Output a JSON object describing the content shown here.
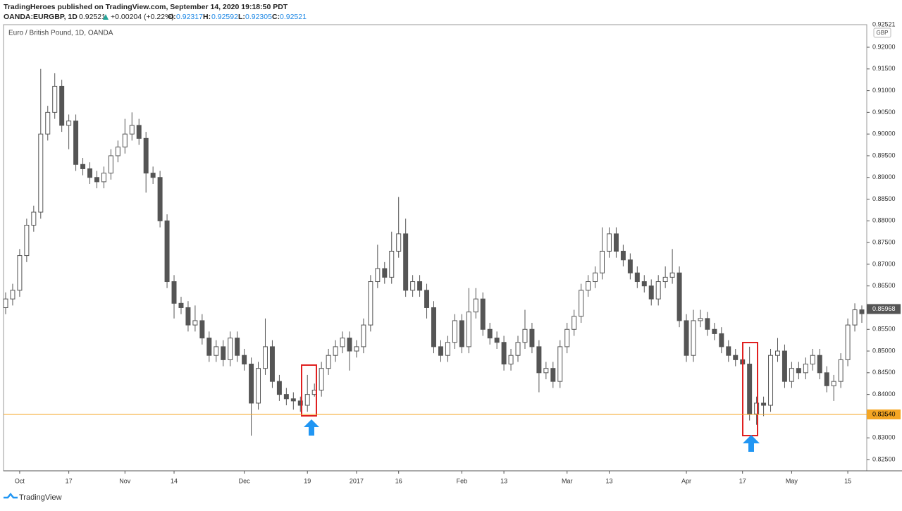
{
  "header": {
    "publisher": "TradingHeroes published on TradingView.com, September 14, 2020 19:18:50 PDT",
    "symbol": "OANDA:EURGBP, 1D",
    "price": "0.92521",
    "change": "+0.00204 (+0.22%)",
    "o_label": "O:",
    "o": "0.92317",
    "h_label": "H:",
    "h": "0.92592",
    "l_label": "L:",
    "l": "0.92305",
    "c_label": "C:",
    "c": "0.92521"
  },
  "footer": {
    "brand": "TradingView"
  },
  "chart_data": {
    "type": "candlestick",
    "title": "Euro / British Pound, 1D, OANDA",
    "currency": "GBP",
    "up_color": "#ffffff",
    "down_color": "#555555",
    "edge_color": "#555555",
    "grid": false,
    "open": [
      0.86,
      0.862,
      0.864,
      0.872,
      0.879,
      0.882,
      0.9,
      0.905,
      0.911,
      0.902,
      0.903,
      0.893,
      0.892,
      0.89,
      0.889,
      0.891,
      0.895,
      0.897,
      0.9,
      0.902,
      0.899,
      0.891,
      0.89,
      0.88,
      0.866,
      0.861,
      0.86,
      0.856,
      0.857,
      0.853,
      0.849,
      0.851,
      0.848,
      0.853,
      0.849,
      0.847,
      0.838,
      0.846,
      0.851,
      0.843,
      0.84,
      0.839,
      0.8385,
      0.8375,
      0.84,
      0.841,
      0.846,
      0.849,
      0.851,
      0.853,
      0.85,
      0.851,
      0.856,
      0.866,
      0.869,
      0.867,
      0.873,
      0.877,
      0.864,
      0.866,
      0.864,
      0.86,
      0.851,
      0.849,
      0.852,
      0.857,
      0.851,
      0.859,
      0.862,
      0.855,
      0.853,
      0.852,
      0.847,
      0.849,
      0.852,
      0.855,
      0.851,
      0.845,
      0.846,
      0.843,
      0.851,
      0.855,
      0.858,
      0.864,
      0.866,
      0.868,
      0.873,
      0.877,
      0.873,
      0.871,
      0.868,
      0.866,
      0.865,
      0.862,
      0.866,
      0.867,
      0.868,
      0.857,
      0.849,
      0.857,
      0.8575,
      0.855,
      0.854,
      0.851,
      0.849,
      0.848,
      0.847,
      0.8355,
      0.838,
      0.8375,
      0.849,
      0.85,
      0.843,
      0.846,
      0.845,
      0.847,
      0.849,
      0.845,
      0.842,
      0.843,
      0.848,
      0.856,
      0.8595
    ],
    "high": [
      0.8635,
      0.8655,
      0.8735,
      0.8805,
      0.8835,
      0.915,
      0.9065,
      0.914,
      0.9125,
      0.9045,
      0.9045,
      0.8945,
      0.8935,
      0.8915,
      0.8925,
      0.8965,
      0.8985,
      0.9035,
      0.905,
      0.9035,
      0.9005,
      0.8925,
      0.8915,
      0.8815,
      0.8675,
      0.8625,
      0.8615,
      0.8605,
      0.8585,
      0.8545,
      0.8525,
      0.8525,
      0.8545,
      0.8545,
      0.8505,
      0.8485,
      0.8475,
      0.8575,
      0.8525,
      0.8445,
      0.8415,
      0.8405,
      0.8395,
      0.8445,
      0.8425,
      0.8475,
      0.8505,
      0.8525,
      0.8545,
      0.8545,
      0.8525,
      0.8575,
      0.8675,
      0.8745,
      0.8705,
      0.8775,
      0.8855,
      0.8805,
      0.8675,
      0.8675,
      0.8655,
      0.8615,
      0.8525,
      0.8535,
      0.8585,
      0.8585,
      0.8645,
      0.8645,
      0.8635,
      0.8565,
      0.8545,
      0.8535,
      0.8505,
      0.8535,
      0.8595,
      0.8565,
      0.8525,
      0.8475,
      0.8475,
      0.8525,
      0.8565,
      0.8595,
      0.8655,
      0.8675,
      0.8695,
      0.8785,
      0.8785,
      0.8785,
      0.8745,
      0.8725,
      0.8695,
      0.8675,
      0.8665,
      0.8675,
      0.8695,
      0.8735,
      0.8695,
      0.8585,
      0.8595,
      0.8595,
      0.859,
      0.8565,
      0.8555,
      0.8525,
      0.8505,
      0.8515,
      0.851,
      0.8395,
      0.8395,
      0.8505,
      0.853,
      0.8515,
      0.8475,
      0.8475,
      0.8485,
      0.8505,
      0.8505,
      0.8465,
      0.8445,
      0.8495,
      0.8575,
      0.861,
      0.8605
    ],
    "low": [
      0.8585,
      0.8605,
      0.8625,
      0.8705,
      0.8775,
      0.8805,
      0.8985,
      0.9035,
      0.9005,
      0.8965,
      0.8915,
      0.8905,
      0.8885,
      0.8875,
      0.8875,
      0.8895,
      0.8935,
      0.8955,
      0.8985,
      0.8975,
      0.8865,
      0.8885,
      0.8785,
      0.8645,
      0.8575,
      0.8585,
      0.8545,
      0.8545,
      0.8515,
      0.8475,
      0.8475,
      0.8465,
      0.8465,
      0.8475,
      0.8455,
      0.8305,
      0.8365,
      0.8445,
      0.8415,
      0.8385,
      0.8375,
      0.8365,
      0.836,
      0.836,
      0.8395,
      0.8395,
      0.8445,
      0.8475,
      0.8495,
      0.8455,
      0.8485,
      0.8495,
      0.8545,
      0.8645,
      0.8655,
      0.8655,
      0.8715,
      0.8625,
      0.8625,
      0.8625,
      0.8575,
      0.8495,
      0.8475,
      0.8475,
      0.8505,
      0.8495,
      0.8495,
      0.8575,
      0.8535,
      0.8515,
      0.8505,
      0.8455,
      0.8455,
      0.8475,
      0.8505,
      0.8495,
      0.8405,
      0.8435,
      0.8415,
      0.8415,
      0.8495,
      0.8535,
      0.8565,
      0.8625,
      0.8645,
      0.8665,
      0.8715,
      0.8715,
      0.8695,
      0.8665,
      0.8645,
      0.8635,
      0.8605,
      0.8605,
      0.8645,
      0.8655,
      0.8555,
      0.8475,
      0.8475,
      0.8555,
      0.8535,
      0.8525,
      0.8495,
      0.8475,
      0.8465,
      0.8455,
      0.834,
      0.833,
      0.835,
      0.836,
      0.8475,
      0.8415,
      0.8415,
      0.8435,
      0.8435,
      0.8455,
      0.8435,
      0.8405,
      0.8385,
      0.8415,
      0.8465,
      0.8545,
      0.8565
    ],
    "close": [
      0.862,
      0.864,
      0.872,
      0.879,
      0.882,
      0.9,
      0.905,
      0.911,
      0.902,
      0.903,
      0.893,
      0.892,
      0.89,
      0.889,
      0.891,
      0.895,
      0.897,
      0.9,
      0.902,
      0.899,
      0.891,
      0.89,
      0.88,
      0.866,
      0.861,
      0.86,
      0.856,
      0.857,
      0.853,
      0.849,
      0.851,
      0.848,
      0.853,
      0.849,
      0.847,
      0.838,
      0.846,
      0.851,
      0.843,
      0.84,
      0.839,
      0.8385,
      0.8375,
      0.84,
      0.841,
      0.846,
      0.849,
      0.851,
      0.853,
      0.85,
      0.851,
      0.856,
      0.866,
      0.869,
      0.867,
      0.873,
      0.877,
      0.864,
      0.866,
      0.864,
      0.86,
      0.851,
      0.849,
      0.852,
      0.857,
      0.851,
      0.859,
      0.862,
      0.855,
      0.853,
      0.852,
      0.847,
      0.849,
      0.852,
      0.855,
      0.851,
      0.845,
      0.846,
      0.843,
      0.851,
      0.855,
      0.858,
      0.864,
      0.866,
      0.868,
      0.873,
      0.877,
      0.873,
      0.871,
      0.868,
      0.866,
      0.865,
      0.862,
      0.866,
      0.867,
      0.868,
      0.857,
      0.849,
      0.857,
      0.8575,
      0.855,
      0.854,
      0.851,
      0.849,
      0.848,
      0.847,
      0.8355,
      0.838,
      0.8375,
      0.849,
      0.85,
      0.843,
      0.846,
      0.845,
      0.847,
      0.849,
      0.845,
      0.842,
      0.843,
      0.848,
      0.856,
      0.8595,
      0.8586
    ],
    "ylim": [
      0.8224,
      0.9252
    ],
    "yticks": [
      {
        "value": 0.825,
        "label": "0.82500"
      },
      {
        "value": 0.83,
        "label": "0.83000"
      },
      {
        "value": 0.835,
        "label": "0.83500"
      },
      {
        "value": 0.84,
        "label": "0.84000"
      },
      {
        "value": 0.845,
        "label": "0.84500"
      },
      {
        "value": 0.85,
        "label": "0.85000"
      },
      {
        "value": 0.855,
        "label": "0.85500"
      },
      {
        "value": 0.86,
        "label": "0.86000"
      },
      {
        "value": 0.865,
        "label": "0.86500"
      },
      {
        "value": 0.87,
        "label": "0.87000"
      },
      {
        "value": 0.875,
        "label": "0.87500"
      },
      {
        "value": 0.88,
        "label": "0.88000"
      },
      {
        "value": 0.885,
        "label": "0.88500"
      },
      {
        "value": 0.89,
        "label": "0.89000"
      },
      {
        "value": 0.895,
        "label": "0.89500"
      },
      {
        "value": 0.9,
        "label": "0.90000"
      },
      {
        "value": 0.905,
        "label": "0.90500"
      },
      {
        "value": 0.91,
        "label": "0.91000"
      },
      {
        "value": 0.915,
        "label": "0.91500"
      },
      {
        "value": 0.92,
        "label": "0.92000"
      }
    ],
    "y_top_label": 0.92521,
    "last_price": 0.85968,
    "hline": {
      "value": 0.8354,
      "label": "0.83540",
      "color": "#f5a623"
    },
    "xticks": [
      {
        "value": 2,
        "label": "Oct"
      },
      {
        "value": 9,
        "label": "17"
      },
      {
        "value": 17,
        "label": "Nov"
      },
      {
        "value": 24,
        "label": "14"
      },
      {
        "value": 34,
        "label": "Dec"
      },
      {
        "value": 43,
        "label": "19"
      },
      {
        "value": 50,
        "label": "2017"
      },
      {
        "value": 56,
        "label": "16"
      },
      {
        "value": 65,
        "label": "Feb"
      },
      {
        "value": 71,
        "label": "13"
      },
      {
        "value": 80,
        "label": "Mar"
      },
      {
        "value": 86,
        "label": "13"
      },
      {
        "value": 97,
        "label": "Apr"
      },
      {
        "value": 105,
        "label": "17"
      },
      {
        "value": 112,
        "label": "May"
      },
      {
        "value": 120,
        "label": "15"
      }
    ]
  }
}
